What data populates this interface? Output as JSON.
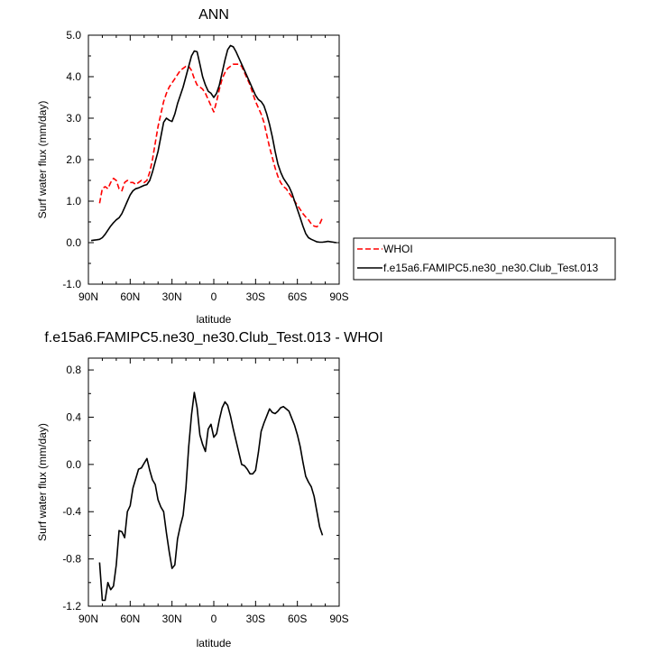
{
  "chart_data": [
    {
      "type": "line",
      "title": "ANN",
      "xlabel": "latitude",
      "ylabel": "Surf water flux (mm/day)",
      "xlim": [
        -90,
        90
      ],
      "ylim": [
        -1.0,
        5.0
      ],
      "x_ticks": [
        -90,
        -60,
        -30,
        0,
        30,
        60,
        90
      ],
      "x_tick_labels": [
        "90N",
        "60N",
        "30N",
        "0",
        "30S",
        "60S",
        "90S"
      ],
      "y_ticks": [
        -1.0,
        0.0,
        1.0,
        2.0,
        3.0,
        4.0,
        5.0
      ],
      "y_tick_labels": [
        "-1.0",
        "0.0",
        "1.0",
        "2.0",
        "3.0",
        "4.0",
        "5.0"
      ],
      "grid": false,
      "legend": "right",
      "series": [
        {
          "name": "WHOI",
          "color": "#ff0000",
          "dash": true,
          "x": [
            -82,
            -80,
            -78,
            -76,
            -74,
            -72,
            -70,
            -68,
            -66,
            -64,
            -62,
            -60,
            -58,
            -56,
            -54,
            -52,
            -50,
            -48,
            -46,
            -44,
            -42,
            -40,
            -38,
            -36,
            -34,
            -32,
            -30,
            -28,
            -26,
            -24,
            -22,
            -20,
            -18,
            -16,
            -14,
            -12,
            -10,
            -8,
            -6,
            -4,
            -2,
            0,
            2,
            4,
            6,
            8,
            10,
            12,
            14,
            16,
            18,
            20,
            22,
            24,
            26,
            28,
            30,
            32,
            34,
            36,
            38,
            40,
            42,
            44,
            46,
            48,
            50,
            52,
            54,
            56,
            58,
            60,
            62,
            64,
            66,
            68,
            70,
            72,
            74,
            76,
            78
          ],
          "y": [
            0.95,
            1.3,
            1.35,
            1.3,
            1.45,
            1.55,
            1.5,
            1.3,
            1.25,
            1.45,
            1.5,
            1.45,
            1.45,
            1.4,
            1.45,
            1.5,
            1.45,
            1.5,
            1.7,
            2.0,
            2.4,
            2.8,
            3.1,
            3.4,
            3.6,
            3.75,
            3.85,
            3.95,
            4.05,
            4.15,
            4.2,
            4.25,
            4.25,
            4.15,
            3.95,
            3.8,
            3.75,
            3.7,
            3.6,
            3.45,
            3.3,
            3.15,
            3.4,
            3.7,
            3.95,
            4.1,
            4.2,
            4.25,
            4.3,
            4.3,
            4.3,
            4.25,
            4.1,
            3.95,
            3.8,
            3.6,
            3.4,
            3.25,
            3.1,
            2.9,
            2.6,
            2.3,
            2.05,
            1.8,
            1.6,
            1.45,
            1.35,
            1.3,
            1.2,
            1.1,
            1.0,
            0.9,
            0.8,
            0.7,
            0.62,
            0.55,
            0.45,
            0.4,
            0.38,
            0.45,
            0.6
          ]
        },
        {
          "name": "f.e15a6.FAMIPC5.ne30_ne30.Club_Test.013",
          "color": "#000000",
          "dash": false,
          "x": [
            -88,
            -86,
            -84,
            -82,
            -80,
            -78,
            -76,
            -74,
            -72,
            -70,
            -68,
            -66,
            -64,
            -62,
            -60,
            -58,
            -56,
            -54,
            -52,
            -50,
            -48,
            -46,
            -44,
            -42,
            -40,
            -38,
            -36,
            -34,
            -32,
            -30,
            -28,
            -26,
            -24,
            -22,
            -20,
            -18,
            -16,
            -14,
            -12,
            -10,
            -8,
            -6,
            -4,
            -2,
            0,
            2,
            4,
            6,
            8,
            10,
            12,
            14,
            16,
            18,
            20,
            22,
            24,
            26,
            28,
            30,
            32,
            34,
            36,
            38,
            40,
            42,
            44,
            46,
            48,
            50,
            52,
            54,
            56,
            58,
            60,
            62,
            64,
            66,
            68,
            70,
            72,
            74,
            76,
            78,
            80,
            82,
            84,
            86,
            88
          ],
          "y": [
            0.05,
            0.06,
            0.07,
            0.08,
            0.12,
            0.2,
            0.3,
            0.4,
            0.48,
            0.55,
            0.6,
            0.7,
            0.85,
            1.0,
            1.15,
            1.25,
            1.3,
            1.32,
            1.35,
            1.38,
            1.4,
            1.5,
            1.7,
            1.95,
            2.2,
            2.55,
            2.9,
            3.0,
            2.95,
            2.92,
            3.1,
            3.35,
            3.55,
            3.75,
            4.0,
            4.25,
            4.5,
            4.62,
            4.6,
            4.3,
            4.0,
            3.8,
            3.65,
            3.6,
            3.5,
            3.6,
            3.8,
            4.1,
            4.4,
            4.65,
            4.75,
            4.72,
            4.6,
            4.45,
            4.3,
            4.15,
            4.0,
            3.85,
            3.7,
            3.55,
            3.45,
            3.4,
            3.3,
            3.1,
            2.85,
            2.55,
            2.2,
            1.9,
            1.7,
            1.55,
            1.45,
            1.35,
            1.2,
            1.0,
            0.8,
            0.6,
            0.4,
            0.22,
            0.12,
            0.08,
            0.05,
            0.02,
            0.01,
            0.01,
            0.02,
            0.03,
            0.02,
            0.01,
            0.0
          ]
        }
      ]
    },
    {
      "type": "line",
      "title": "f.e15a6.FAMIPC5.ne30_ne30.Club_Test.013 - WHOI",
      "xlabel": "latitude",
      "ylabel": "Surf water flux (mm/day)",
      "xlim": [
        -90,
        90
      ],
      "ylim": [
        -1.2,
        0.9
      ],
      "x_ticks": [
        -90,
        -60,
        -30,
        0,
        30,
        60,
        90
      ],
      "x_tick_labels": [
        "90N",
        "60N",
        "30N",
        "0",
        "30S",
        "60S",
        "90S"
      ],
      "y_ticks": [
        -1.2,
        -0.8,
        -0.4,
        0.0,
        0.4,
        0.8
      ],
      "y_tick_labels": [
        "-1.2",
        "-0.8",
        "-0.4",
        "0.0",
        "0.4",
        "0.8"
      ],
      "grid": false,
      "series": [
        {
          "color": "#000000",
          "dash": false,
          "x": [
            -82,
            -80,
            -78,
            -76,
            -74,
            -72,
            -70,
            -68,
            -66,
            -64,
            -62,
            -60,
            -58,
            -56,
            -54,
            -52,
            -50,
            -48,
            -46,
            -44,
            -42,
            -40,
            -38,
            -36,
            -34,
            -32,
            -30,
            -28,
            -26,
            -24,
            -22,
            -20,
            -18,
            -16,
            -14,
            -12,
            -10,
            -8,
            -6,
            -4,
            -2,
            0,
            2,
            4,
            6,
            8,
            10,
            12,
            14,
            16,
            18,
            20,
            22,
            24,
            26,
            28,
            30,
            32,
            34,
            36,
            38,
            40,
            42,
            44,
            46,
            48,
            50,
            52,
            54,
            56,
            58,
            60,
            62,
            64,
            66,
            68,
            70,
            72,
            74,
            76,
            78
          ],
          "y": [
            -0.83,
            -1.15,
            -1.15,
            -1.0,
            -1.06,
            -1.03,
            -0.85,
            -0.56,
            -0.57,
            -0.62,
            -0.4,
            -0.35,
            -0.2,
            -0.12,
            -0.04,
            -0.03,
            0.01,
            0.05,
            -0.05,
            -0.13,
            -0.17,
            -0.3,
            -0.36,
            -0.4,
            -0.58,
            -0.74,
            -0.88,
            -0.85,
            -0.63,
            -0.52,
            -0.43,
            -0.2,
            0.15,
            0.42,
            0.61,
            0.48,
            0.25,
            0.17,
            0.11,
            0.3,
            0.34,
            0.23,
            0.26,
            0.38,
            0.48,
            0.53,
            0.5,
            0.41,
            0.3,
            0.2,
            0.1,
            0.0,
            -0.01,
            -0.04,
            -0.08,
            -0.08,
            -0.05,
            0.1,
            0.28,
            0.35,
            0.41,
            0.47,
            0.44,
            0.43,
            0.45,
            0.48,
            0.49,
            0.47,
            0.45,
            0.39,
            0.33,
            0.25,
            0.15,
            0.02,
            -0.1,
            -0.15,
            -0.19,
            -0.27,
            -0.4,
            -0.53,
            -0.6
          ]
        }
      ]
    }
  ]
}
